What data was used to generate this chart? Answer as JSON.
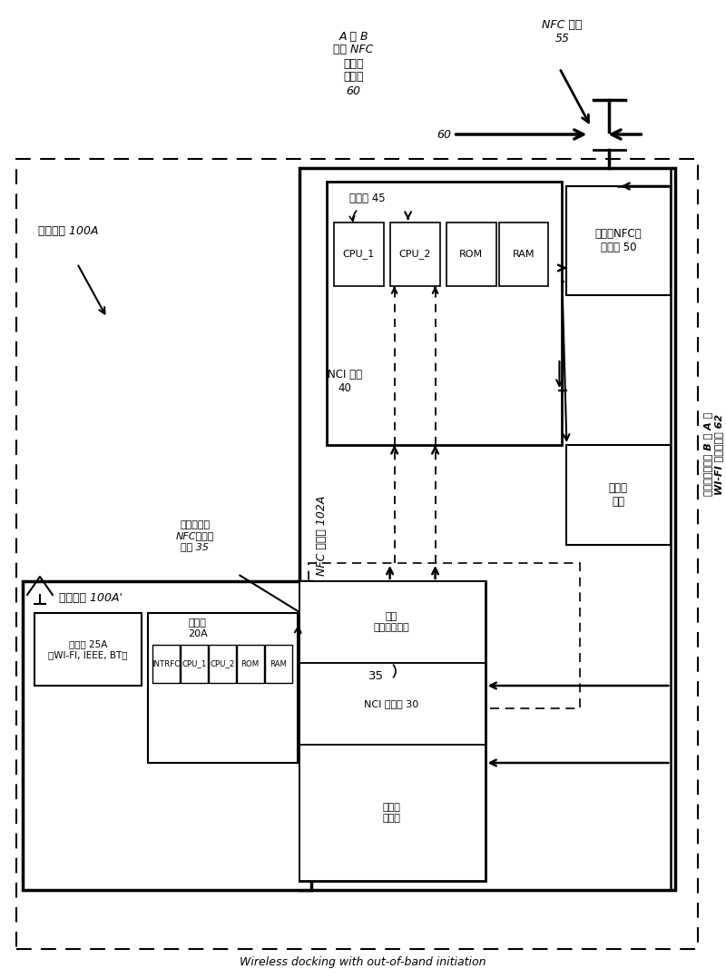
{
  "title": "Wireless docking with out-of-band initiation",
  "bg_color": "#ffffff",
  "mobile_device_label": "移动设备 100A",
  "host_label": "设备主机 100A'",
  "nfc_controller_label": "NFC 控制器 102A",
  "nci_firmware_label": "NCI 固件\n40",
  "processor_nfc_label": "处理器 45",
  "nfc_radio_label": "近场（NFC）\n无线电 50",
  "transport_firmware_label": "传输层\n固件",
  "transceiver_label": "收发器 25A\n（WI-FI, IEEE, BT）",
  "processor_host_label": "处理器\n20A",
  "host_interface_label": "设备主机和\nNFC控制器\n接口 35",
  "drivers_top_label": "高层\n驱动器／软件",
  "nci_driver_label": "NCI 驱动器 30",
  "transport_driver_label": "传输层\n驱动器",
  "nfc_cpu1": "CPU_1",
  "nfc_cpu2": "CPU_2",
  "nfc_rom": "ROM",
  "nfc_ram": "RAM",
  "host_intrfc": "INTRFC",
  "host_cpu1": "CPU_1",
  "host_cpu2": "CPU_2",
  "host_rom": "ROM",
  "host_ram": "RAM",
  "nfc_signal_label": "NFC 信号\n55",
  "atob_label": "A 到 B\n动态 NFC\n连接切\n接请求\n60",
  "num_60": "60",
  "interface_35": "35",
  "right_label_line1": "连接切换选择中 B 到 A 的",
  "right_label_line2": "WI-FI 设备和证书 62"
}
